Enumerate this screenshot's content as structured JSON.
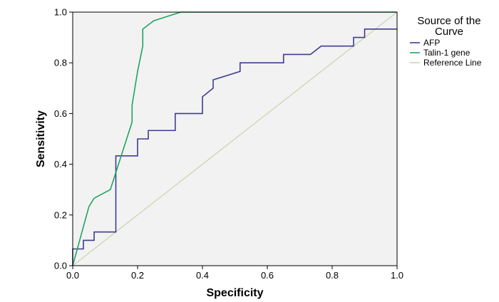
{
  "chart_data": {
    "type": "line",
    "title": "",
    "xlabel": "Specificity",
    "ylabel": "Sensitivity",
    "xlim": [
      0,
      1
    ],
    "ylim": [
      0,
      1
    ],
    "x_ticks": [
      "0.0",
      "0.2",
      "0.4",
      "0.6",
      "0.8",
      "1.0"
    ],
    "y_ticks": [
      "0.0",
      "0.2",
      "0.4",
      "0.6",
      "0.8",
      "1.0"
    ],
    "grid": false,
    "plot_background": "#f2f2f2",
    "legend": {
      "title_lines": [
        "Source of the",
        "Curve"
      ],
      "placement": "right"
    },
    "series": [
      {
        "name": "AFP",
        "color": "#3f3d8f",
        "x": [
          0.0,
          0.0,
          0.033,
          0.033,
          0.066,
          0.066,
          0.133,
          0.133,
          0.2,
          0.2,
          0.233,
          0.233,
          0.316,
          0.316,
          0.4,
          0.4,
          0.433,
          0.433,
          0.516,
          0.516,
          0.65,
          0.65,
          0.733,
          0.766,
          0.866,
          0.866,
          0.9,
          0.9,
          0.916,
          0.916,
          1.0
        ],
        "y": [
          0.0,
          0.066,
          0.066,
          0.1,
          0.1,
          0.133,
          0.133,
          0.433,
          0.433,
          0.5,
          0.5,
          0.533,
          0.533,
          0.6,
          0.6,
          0.666,
          0.7,
          0.733,
          0.766,
          0.8,
          0.8,
          0.833,
          0.833,
          0.866,
          0.866,
          0.9,
          0.9,
          0.933,
          0.933,
          0.933,
          0.933
        ]
      },
      {
        "name": "Talin-1 gene",
        "color": "#1fa463",
        "x": [
          0.0,
          0.05,
          0.066,
          0.116,
          0.183,
          0.183,
          0.2,
          0.216,
          0.216,
          0.25,
          0.333,
          1.0
        ],
        "y": [
          0.0,
          0.233,
          0.266,
          0.3,
          0.566,
          0.633,
          0.766,
          0.866,
          0.933,
          0.966,
          1.0,
          1.0
        ]
      },
      {
        "name": "Reference Line",
        "color": "#c8d4b0",
        "x": [
          0.0,
          1.0
        ],
        "y": [
          0.0,
          1.0
        ]
      }
    ]
  }
}
